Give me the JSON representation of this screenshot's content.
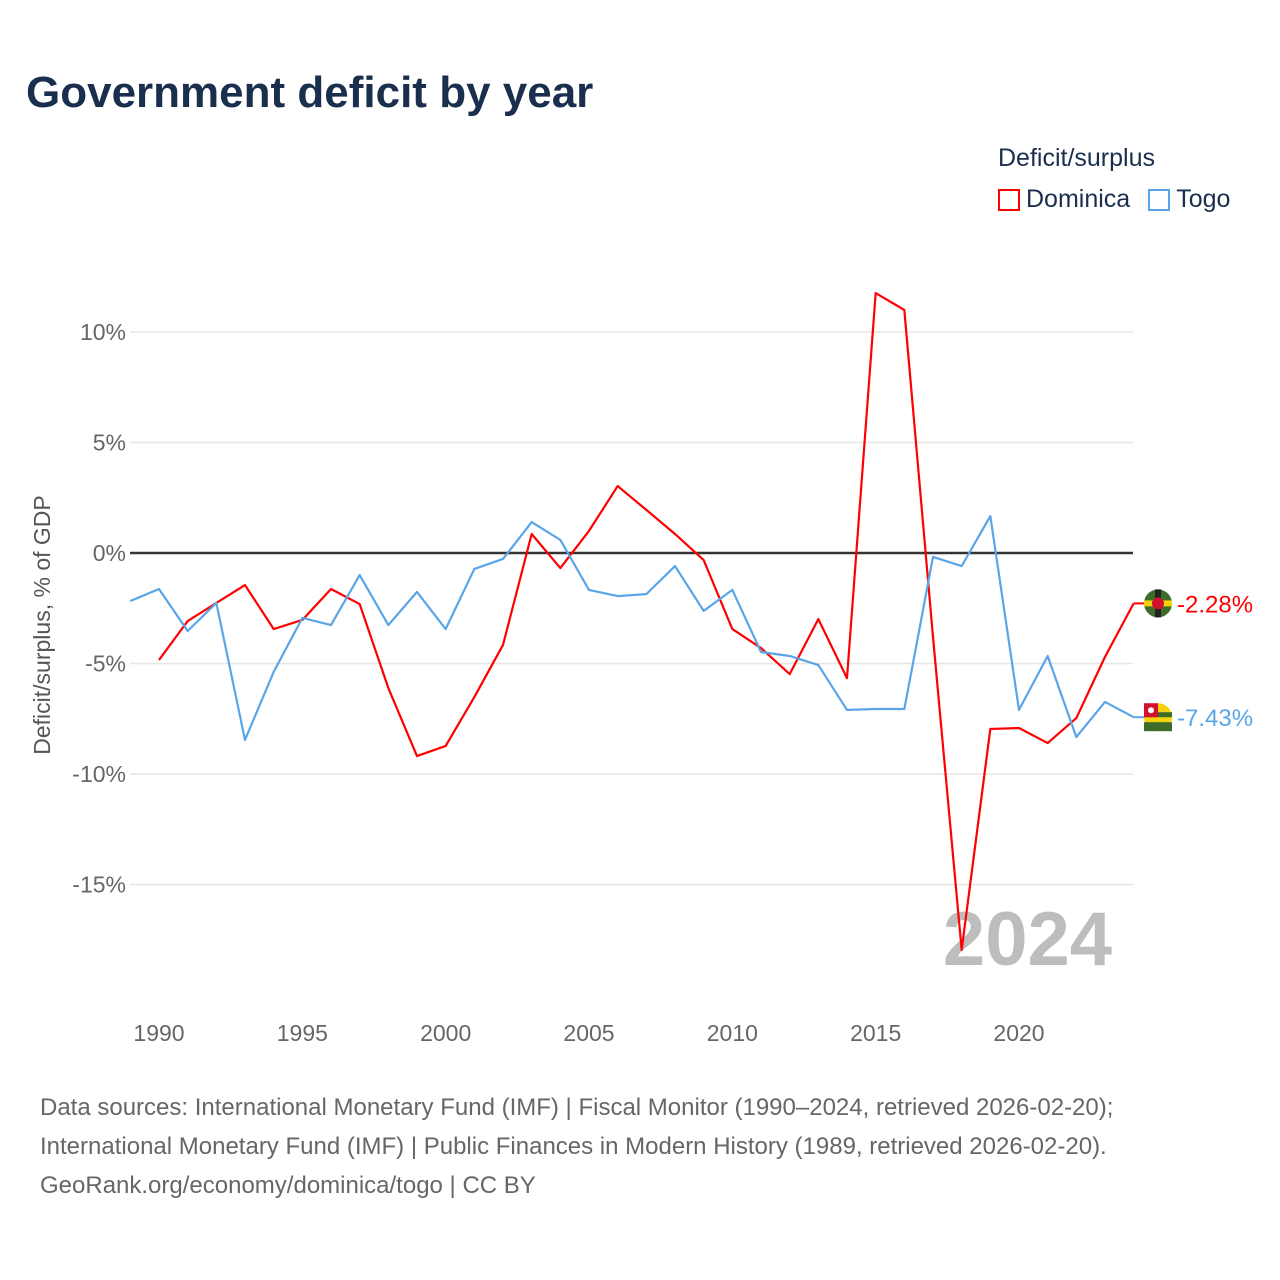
{
  "title": "Government deficit by year",
  "legend": {
    "title": "Deficit/surplus",
    "items": [
      {
        "label": "Dominica",
        "color": "#ff0000"
      },
      {
        "label": "Togo",
        "color": "#5aa5e8"
      }
    ]
  },
  "year_watermark": "2024",
  "footer": {
    "line1": "Data sources: International Monetary Fund (IMF) | Fiscal Monitor (1990–2024, retrieved 2026-02-20);",
    "line2": "International Monetary Fund (IMF) | Public Finances in Modern History (1989, retrieved 2026-02-20).",
    "line3": "GeoRank.org/economy/dominica/togo | CC BY"
  },
  "chart_data": {
    "type": "line",
    "title": "Government deficit by year",
    "xlabel": "",
    "ylabel": "Deficit/surplus, % of GDP",
    "xlim": [
      1989,
      2024
    ],
    "ylim": [
      -20,
      12.5
    ],
    "x_ticks": [
      {
        "v": 1990,
        "label": "1990"
      },
      {
        "v": 1995,
        "label": "1995"
      },
      {
        "v": 2000,
        "label": "2000"
      },
      {
        "v": 2005,
        "label": "2005"
      },
      {
        "v": 2010,
        "label": "2010"
      },
      {
        "v": 2015,
        "label": "2015"
      },
      {
        "v": 2020,
        "label": "2020"
      }
    ],
    "y_ticks": [
      {
        "v": 10,
        "label": "10%"
      },
      {
        "v": 5,
        "label": "5%"
      },
      {
        "v": 0,
        "label": "0%"
      },
      {
        "v": -5,
        "label": "-5%"
      },
      {
        "v": -10,
        "label": "-10%"
      },
      {
        "v": -15,
        "label": "-15%"
      }
    ],
    "grid": true,
    "legend_position": "top-right",
    "series": [
      {
        "name": "Dominica",
        "color": "#ff0000",
        "end_label": "-2.28%",
        "start_year": 1990,
        "values": [
          -4.84,
          -3.08,
          -2.26,
          -1.45,
          -3.44,
          -3.03,
          -1.63,
          -2.31,
          -6.11,
          -9.19,
          -8.73,
          -6.52,
          -4.16,
          0.86,
          -0.68,
          1.0,
          3.03,
          1.95,
          0.86,
          -0.32,
          -3.44,
          -4.3,
          -5.48,
          -2.99,
          -5.66,
          11.76,
          11.0,
          -3.8,
          -17.96,
          -7.96,
          -7.92,
          -8.6,
          -7.47,
          -4.7,
          -2.28
        ]
      },
      {
        "name": "Togo",
        "color": "#5aa5e8",
        "end_label": "-7.43%",
        "start_year": 1989,
        "values": [
          -2.17,
          -1.63,
          -3.53,
          -2.26,
          -8.46,
          -5.38,
          -2.94,
          -3.26,
          -1.0,
          -3.26,
          -1.76,
          -3.44,
          -0.72,
          -0.27,
          1.4,
          0.59,
          -1.67,
          -1.95,
          -1.86,
          -0.59,
          -2.62,
          -1.67,
          -4.48,
          -4.66,
          -5.07,
          -7.1,
          -7.06,
          -7.06,
          -0.18,
          -0.59,
          1.67,
          -7.1,
          -4.66,
          -8.33,
          -6.74,
          -7.43
        ]
      }
    ]
  }
}
